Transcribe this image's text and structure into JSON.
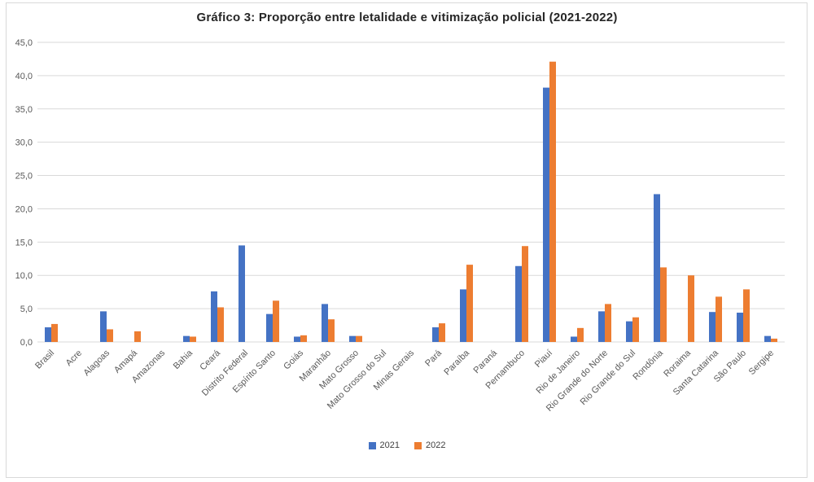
{
  "window": {
    "background_color": "#ffffff",
    "frame_border_color": "#d9d9d9"
  },
  "chart_data": {
    "type": "bar",
    "title": "Gráfico 3: Proporção entre letalidade e vitimização policial (2021-2022)",
    "categories": [
      "Brasil",
      "Acre",
      "Alagoas",
      "Amapá",
      "Amazonas",
      "Bahia",
      "Ceará",
      "Distrito Federal",
      "Espírito Santo",
      "Goiás",
      "Maranhão",
      "Mato Grosso",
      "Mato Grosso do Sul",
      "Minas Gerais",
      "Pará",
      "Paraíba",
      "Paraná",
      "Pernambuco",
      "Piauí",
      "Rio de Janeiro",
      "Rio Grande do Norte",
      "Rio Grande do Sul",
      "Rondônia",
      "Roraima",
      "Santa Catarina",
      "São Paulo",
      "Sergipe"
    ],
    "series": [
      {
        "name": "2021",
        "color": "#4472C4",
        "values": [
          2.2,
          0,
          4.6,
          0,
          0,
          0.9,
          7.6,
          14.5,
          4.2,
          0.8,
          5.7,
          0.9,
          0,
          0,
          2.2,
          7.9,
          0,
          11.4,
          38.2,
          0.8,
          4.6,
          3.1,
          22.2,
          0,
          4.5,
          4.4,
          0.9
        ]
      },
      {
        "name": "2022",
        "color": "#ED7D31",
        "values": [
          2.7,
          0,
          1.9,
          1.6,
          0,
          0.8,
          5.2,
          0,
          6.2,
          1.0,
          3.4,
          0.9,
          0,
          0,
          2.8,
          11.6,
          0,
          14.4,
          42.1,
          2.1,
          5.7,
          3.7,
          11.2,
          10.0,
          6.8,
          7.9,
          0.5
        ]
      }
    ],
    "ylim": [
      0,
      45
    ],
    "ytick_step": 5,
    "ytick_labels": [
      "0,0",
      "5,0",
      "10,0",
      "15,0",
      "20,0",
      "25,0",
      "30,0",
      "35,0",
      "40,0",
      "45,0"
    ],
    "grid": true,
    "gridline_color": "#d9d9d9",
    "axis_line_color": "#d9d9d9",
    "axis_text_color": "#595959",
    "legend_position": "bottom",
    "x_label_rotation_deg": -45
  }
}
